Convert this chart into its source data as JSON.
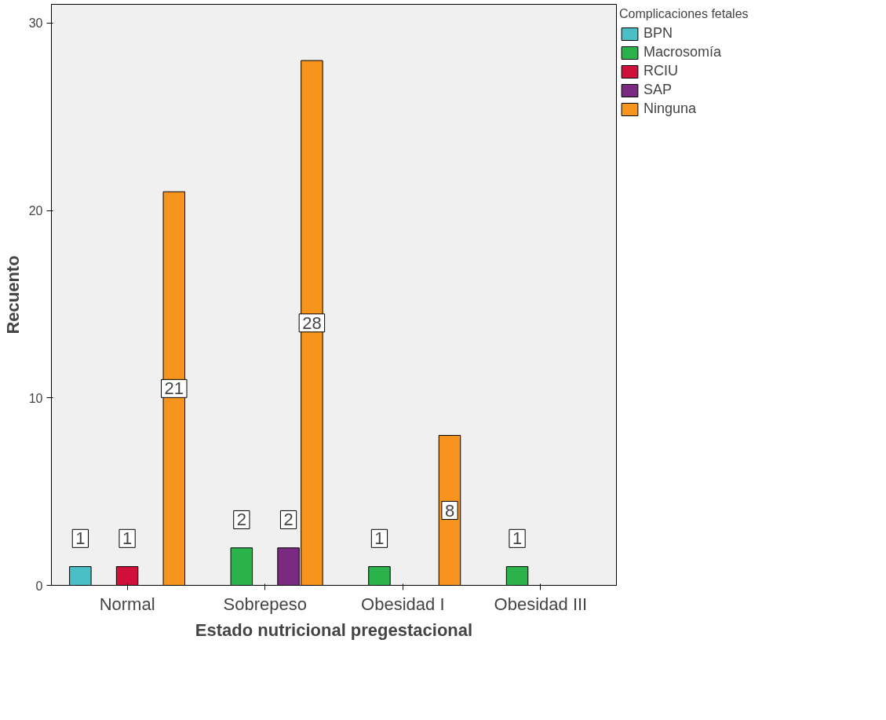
{
  "chart_data": {
    "type": "bar",
    "xlabel": "Estado nutricional pregestacional",
    "ylabel": "Recuento",
    "legend_title": "Complicaciones fetales",
    "categories": [
      "Normal",
      "Sobrepeso",
      "Obesidad I",
      "Obesidad III"
    ],
    "series": [
      {
        "name": "BPN",
        "color": "#4bbfc6",
        "values": [
          1,
          null,
          null,
          null
        ]
      },
      {
        "name": "Macrosomía",
        "color": "#2ab34a",
        "values": [
          null,
          2,
          1,
          1
        ]
      },
      {
        "name": "RCIU",
        "color": "#d0103a",
        "values": [
          1,
          null,
          null,
          null
        ]
      },
      {
        "name": "SAP",
        "color": "#7b2a82",
        "values": [
          null,
          2,
          null,
          null
        ]
      },
      {
        "name": "Ninguna",
        "color": "#f7941d",
        "values": [
          21,
          28,
          8,
          null
        ]
      }
    ],
    "ylim": [
      0,
      31
    ],
    "yticks": [
      0,
      10,
      20,
      30
    ],
    "grid": false,
    "legend": "right",
    "data_labels": true
  }
}
